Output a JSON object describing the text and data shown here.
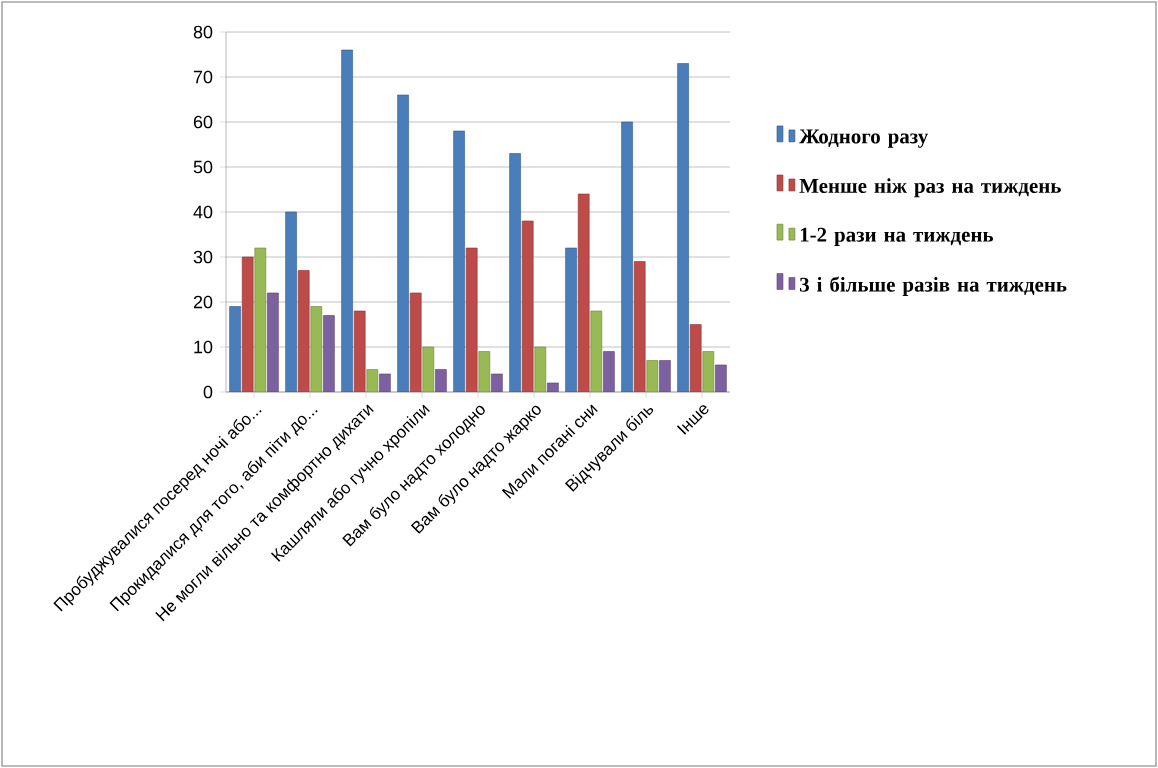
{
  "chart_data": {
    "type": "bar",
    "categories": [
      "Пробуджувалися посеред ночі або...",
      "Прокидалися для того, аби піти до...",
      "Не могли вільно та комфортно дихати",
      "Кашляли або гучно хропіли",
      "Вам було надто холодно",
      "Вам було надто жарко",
      "Мали погані сни",
      "Відчували біль",
      "Інше"
    ],
    "series": [
      {
        "name": "Жодного разу",
        "color": "#4a7ebb",
        "values": [
          19,
          40,
          76,
          66,
          58,
          53,
          32,
          60,
          73
        ]
      },
      {
        "name": "Менше ніж раз на тиждень",
        "color": "#be4b48",
        "values": [
          30,
          27,
          18,
          22,
          32,
          38,
          44,
          29,
          15
        ]
      },
      {
        "name": "1-2 рази на тиждень",
        "color": "#98b954",
        "values": [
          32,
          19,
          5,
          10,
          9,
          10,
          18,
          7,
          9
        ]
      },
      {
        "name": "3 і більше разів на тиждень",
        "color": "#7d60a0",
        "values": [
          22,
          17,
          4,
          5,
          4,
          2,
          9,
          7,
          6
        ]
      }
    ],
    "ylim": [
      0,
      80
    ],
    "yticks": [
      0,
      10,
      20,
      30,
      40,
      50,
      60,
      70,
      80
    ],
    "grid": "y",
    "legend": "right"
  }
}
